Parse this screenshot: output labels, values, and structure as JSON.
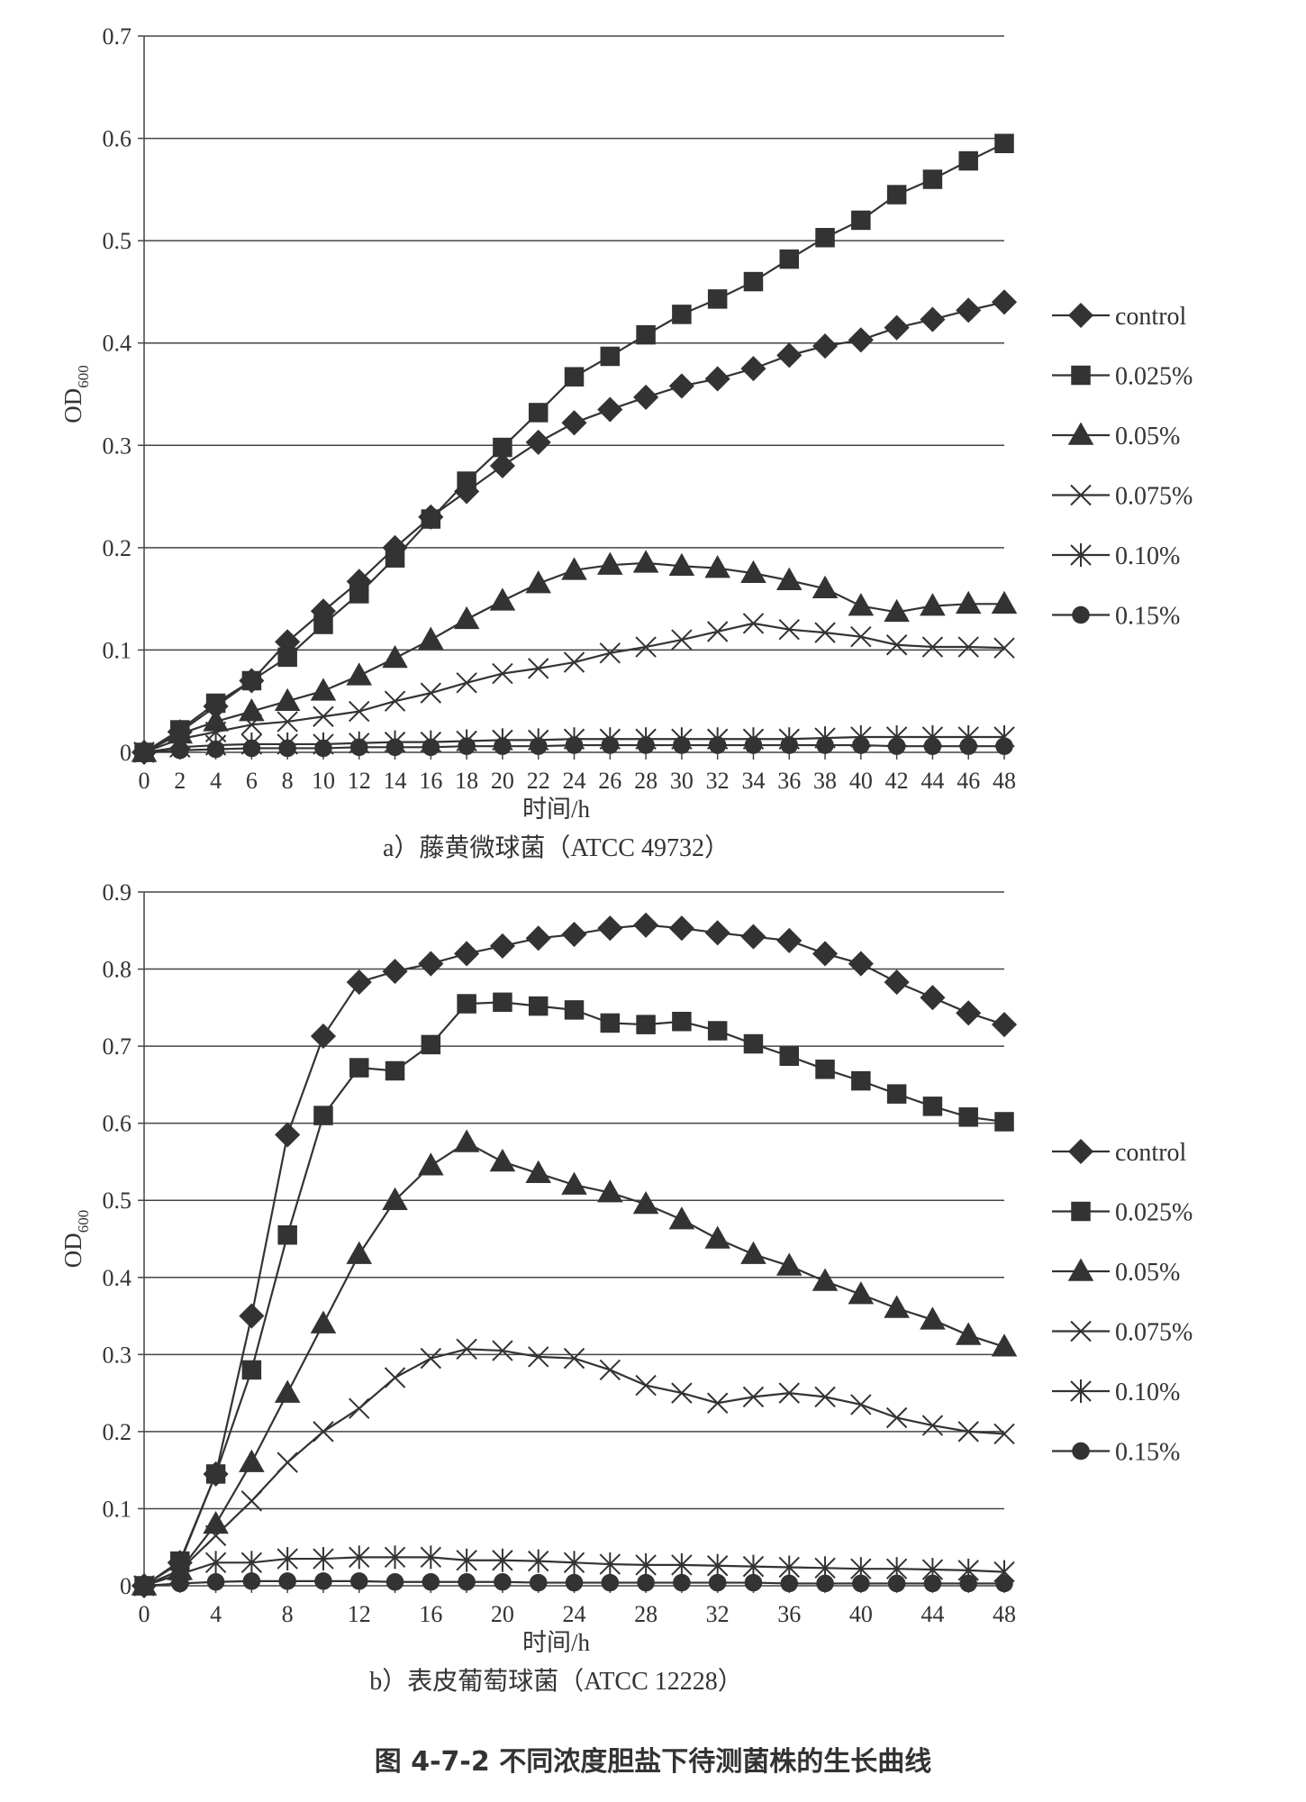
{
  "figure_caption": "图 4-7-2 不同浓度胆盐下待测菌株的生长曲线",
  "colors": {
    "series": "#333333",
    "grid": "#444444",
    "text": "#333333"
  },
  "chart_data": [
    {
      "type": "line",
      "subtitle": "a）藤黄微球菌（ATCC 49732）",
      "xlabel": "时间/h",
      "ylabel": "OD600",
      "ylim": [
        0,
        0.7
      ],
      "yticks": [
        "0",
        "0.1",
        "0.2",
        "0.3",
        "0.4",
        "0.5",
        "0.6",
        "0.7"
      ],
      "xticks": [
        "0",
        "2",
        "4",
        "6",
        "8",
        "10",
        "12",
        "14",
        "16",
        "18",
        "20",
        "22",
        "24",
        "26",
        "28",
        "30",
        "32",
        "34",
        "36",
        "38",
        "40",
        "42",
        "44",
        "46",
        "48"
      ],
      "grid": true,
      "legend_position": "right",
      "x": [
        0,
        2,
        4,
        6,
        8,
        10,
        12,
        14,
        16,
        18,
        20,
        22,
        24,
        26,
        28,
        30,
        32,
        34,
        36,
        38,
        40,
        42,
        44,
        46,
        48
      ],
      "series": [
        {
          "name": "control",
          "marker": "diamond",
          "values": [
            0,
            0.02,
            0.045,
            0.07,
            0.108,
            0.138,
            0.167,
            0.2,
            0.23,
            0.255,
            0.28,
            0.303,
            0.322,
            0.335,
            0.347,
            0.358,
            0.365,
            0.375,
            0.388,
            0.397,
            0.403,
            0.415,
            0.423,
            0.432,
            0.44
          ]
        },
        {
          "name": "0.025%",
          "marker": "square",
          "values": [
            0,
            0.022,
            0.048,
            0.07,
            0.093,
            0.125,
            0.155,
            0.19,
            0.228,
            0.265,
            0.298,
            0.332,
            0.367,
            0.387,
            0.408,
            0.428,
            0.443,
            0.46,
            0.482,
            0.503,
            0.52,
            0.545,
            0.56,
            0.578,
            0.595
          ]
        },
        {
          "name": "0.05%",
          "marker": "triangle",
          "values": [
            0,
            0.018,
            0.03,
            0.04,
            0.05,
            0.06,
            0.075,
            0.092,
            0.11,
            0.13,
            0.148,
            0.165,
            0.178,
            0.183,
            0.185,
            0.182,
            0.18,
            0.175,
            0.168,
            0.16,
            0.143,
            0.137,
            0.143,
            0.145,
            0.145
          ]
        },
        {
          "name": "0.075%",
          "marker": "x",
          "values": [
            0,
            0.013,
            0.02,
            0.027,
            0.03,
            0.035,
            0.04,
            0.05,
            0.058,
            0.068,
            0.077,
            0.082,
            0.088,
            0.097,
            0.103,
            0.11,
            0.118,
            0.126,
            0.12,
            0.117,
            0.113,
            0.105,
            0.103,
            0.103,
            0.102
          ]
        },
        {
          "name": "0.10%",
          "marker": "asterisk",
          "values": [
            0,
            0.005,
            0.007,
            0.008,
            0.008,
            0.008,
            0.009,
            0.01,
            0.01,
            0.011,
            0.012,
            0.012,
            0.013,
            0.013,
            0.013,
            0.013,
            0.013,
            0.013,
            0.013,
            0.014,
            0.015,
            0.015,
            0.015,
            0.015,
            0.015
          ]
        },
        {
          "name": "0.15%",
          "marker": "circle",
          "values": [
            0,
            0.002,
            0.003,
            0.004,
            0.004,
            0.004,
            0.005,
            0.005,
            0.005,
            0.006,
            0.006,
            0.006,
            0.007,
            0.007,
            0.007,
            0.007,
            0.007,
            0.007,
            0.007,
            0.007,
            0.007,
            0.006,
            0.006,
            0.006,
            0.006
          ]
        }
      ]
    },
    {
      "type": "line",
      "subtitle": "b）表皮葡萄球菌（ATCC 12228）",
      "xlabel": "时间/h",
      "ylabel": "OD600",
      "ylim": [
        0,
        0.9
      ],
      "yticks": [
        "0",
        "0.1",
        "0.2",
        "0.3",
        "0.4",
        "0.5",
        "0.6",
        "0.7",
        "0.8",
        "0.9"
      ],
      "xticks": [
        "0",
        "4",
        "8",
        "12",
        "16",
        "20",
        "24",
        "28",
        "32",
        "36",
        "40",
        "44",
        "48"
      ],
      "grid": true,
      "legend_position": "right",
      "x": [
        0,
        2,
        4,
        6,
        8,
        10,
        12,
        14,
        16,
        18,
        20,
        22,
        24,
        26,
        28,
        30,
        32,
        34,
        36,
        38,
        40,
        42,
        44,
        46,
        48
      ],
      "series": [
        {
          "name": "control",
          "marker": "diamond",
          "values": [
            0,
            0.03,
            0.145,
            0.35,
            0.585,
            0.713,
            0.783,
            0.797,
            0.807,
            0.82,
            0.83,
            0.84,
            0.845,
            0.853,
            0.857,
            0.853,
            0.847,
            0.842,
            0.837,
            0.82,
            0.807,
            0.783,
            0.763,
            0.743,
            0.728
          ]
        },
        {
          "name": "0.025%",
          "marker": "square",
          "values": [
            0,
            0.032,
            0.145,
            0.28,
            0.455,
            0.61,
            0.672,
            0.668,
            0.702,
            0.755,
            0.757,
            0.752,
            0.747,
            0.73,
            0.728,
            0.732,
            0.72,
            0.703,
            0.687,
            0.67,
            0.655,
            0.638,
            0.622,
            0.608,
            0.602
          ]
        },
        {
          "name": "0.05%",
          "marker": "triangle",
          "values": [
            0,
            0.02,
            0.08,
            0.16,
            0.25,
            0.34,
            0.43,
            0.5,
            0.545,
            0.575,
            0.55,
            0.535,
            0.52,
            0.51,
            0.495,
            0.475,
            0.45,
            0.43,
            0.415,
            0.395,
            0.378,
            0.36,
            0.345,
            0.325,
            0.31
          ]
        },
        {
          "name": "0.075%",
          "marker": "x",
          "values": [
            0,
            0.02,
            0.065,
            0.11,
            0.16,
            0.2,
            0.23,
            0.27,
            0.295,
            0.307,
            0.305,
            0.297,
            0.295,
            0.28,
            0.26,
            0.25,
            0.237,
            0.245,
            0.25,
            0.245,
            0.235,
            0.218,
            0.208,
            0.2,
            0.197
          ]
        },
        {
          "name": "0.10%",
          "marker": "asterisk",
          "values": [
            0,
            0.015,
            0.03,
            0.03,
            0.035,
            0.035,
            0.037,
            0.037,
            0.037,
            0.033,
            0.033,
            0.032,
            0.03,
            0.028,
            0.027,
            0.027,
            0.026,
            0.025,
            0.024,
            0.023,
            0.022,
            0.022,
            0.021,
            0.02,
            0.018
          ]
        },
        {
          "name": "0.15%",
          "marker": "circle",
          "values": [
            0,
            0.003,
            0.005,
            0.006,
            0.006,
            0.006,
            0.006,
            0.005,
            0.005,
            0.005,
            0.005,
            0.004,
            0.004,
            0.004,
            0.004,
            0.004,
            0.004,
            0.004,
            0.003,
            0.003,
            0.003,
            0.003,
            0.003,
            0.003,
            0.003
          ]
        }
      ]
    }
  ]
}
